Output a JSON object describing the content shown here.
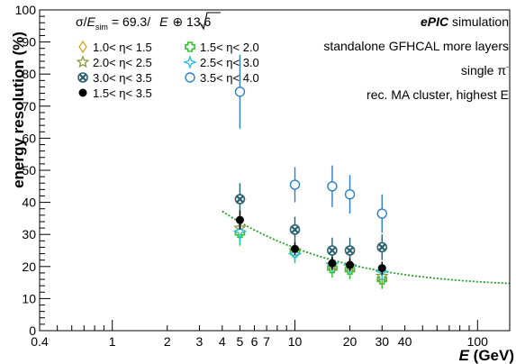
{
  "chart_data": {
    "type": "scatter",
    "xscale": "log",
    "xlim": [
      0.4,
      150
    ],
    "ylim": [
      0,
      100
    ],
    "xlabel_sym": "E",
    "xlabel_unit": " (GeV)",
    "ylabel": "energy resolution (%)",
    "x_ticks": [
      0.4,
      1,
      2,
      3,
      4,
      5,
      6,
      7,
      10,
      20,
      30,
      40,
      100
    ],
    "x_tick_labels": [
      "0.4",
      "1",
      "2",
      "3",
      "4",
      "5",
      "6",
      "7",
      "10",
      "20",
      "30",
      "40",
      "100"
    ],
    "y_ticks": [
      0,
      10,
      20,
      30,
      40,
      50,
      60,
      70,
      80,
      90,
      100
    ],
    "y_tick_labels": [
      "0",
      "10",
      "20",
      "30",
      "40",
      "50",
      "60",
      "70",
      "80",
      "90",
      "100"
    ],
    "grid": false,
    "fit": {
      "formula_lhs_sigma": "σ/",
      "formula_lhs_E": "E",
      "formula_lhs_sub": "sim",
      "formula_eq": "= 69.3/",
      "formula_sqrt_arg": "E",
      "formula_const": "⊕ 13.6",
      "stochastic": 69.3,
      "constant": 13.6,
      "x_range": [
        4,
        150
      ],
      "color": "#2aa02a"
    },
    "annotations": {
      "line1_bold": "ePIC",
      "line1_rest": " simulation",
      "line2": "standalone GFHCAL more layers",
      "line3": "single π",
      "line3_sup": "-",
      "line4": "rec. MA cluster, highest E"
    },
    "series": [
      {
        "name": "1.0< η< 1.5",
        "marker": "diamond",
        "color": "#d4a017",
        "points": []
      },
      {
        "name": "1.5< η< 2.0",
        "marker": "cross",
        "color": "#2dc52d",
        "points": [
          {
            "x": 5,
            "y": 30.5,
            "err": 4
          },
          {
            "x": 10,
            "y": 24.5,
            "err": 3
          },
          {
            "x": 16,
            "y": 19.5,
            "err": 3
          },
          {
            "x": 20,
            "y": 19,
            "err": 3
          },
          {
            "x": 30,
            "y": 16,
            "err": 3
          }
        ]
      },
      {
        "name": "2.0< η< 2.5",
        "marker": "star",
        "color": "#8a9a3a",
        "points": [
          {
            "x": 5,
            "y": 32,
            "err": 4
          },
          {
            "x": 10,
            "y": 25,
            "err": 3
          },
          {
            "x": 16,
            "y": 20.5,
            "err": 3
          },
          {
            "x": 20,
            "y": 20,
            "err": 3
          },
          {
            "x": 30,
            "y": 17,
            "err": 3
          }
        ]
      },
      {
        "name": "2.5< η< 3.0",
        "marker": "star4",
        "color": "#22c0d8",
        "points": [
          {
            "x": 5,
            "y": 31,
            "err": 4
          },
          {
            "x": 10,
            "y": 24,
            "err": 3
          },
          {
            "x": 16,
            "y": 21,
            "err": 3
          },
          {
            "x": 20,
            "y": 20.5,
            "err": 3
          },
          {
            "x": 30,
            "y": 18.5,
            "err": 3
          }
        ]
      },
      {
        "name": "3.0< η< 3.5",
        "marker": "xcircle",
        "color": "#2a6070",
        "points": [
          {
            "x": 5,
            "y": 41,
            "err": 5
          },
          {
            "x": 10,
            "y": 31.5,
            "err": 4
          },
          {
            "x": 16,
            "y": 25,
            "err": 4
          },
          {
            "x": 20,
            "y": 25,
            "err": 4
          },
          {
            "x": 30,
            "y": 26,
            "err": 4
          }
        ]
      },
      {
        "name": "3.5< η< 4.0",
        "marker": "circle_open",
        "color": "#2f7fc8",
        "points": [
          {
            "x": 5,
            "y": 74.5,
            "err": 11.5
          },
          {
            "x": 10,
            "y": 45.5,
            "err": 5.5
          },
          {
            "x": 16,
            "y": 45,
            "err": 6.5
          },
          {
            "x": 20,
            "y": 42.5,
            "err": 6
          },
          {
            "x": 30,
            "y": 36.5,
            "err": 6
          }
        ]
      },
      {
        "name": "1.5< η< 3.5",
        "marker": "circle_filled",
        "color": "#000000",
        "points": [
          {
            "x": 5,
            "y": 34.5,
            "err": 3
          },
          {
            "x": 10,
            "y": 25.5,
            "err": 2
          },
          {
            "x": 16,
            "y": 21,
            "err": 2
          },
          {
            "x": 20,
            "y": 20.5,
            "err": 2
          },
          {
            "x": 30,
            "y": 19.5,
            "err": 2
          }
        ]
      }
    ],
    "legend": [
      {
        "label": "1.0< η< 1.5",
        "series": 0
      },
      {
        "label": "1.5< η< 2.0",
        "series": 1
      },
      {
        "label": "2.0< η< 2.5",
        "series": 2
      },
      {
        "label": "2.5< η< 3.0",
        "series": 3
      },
      {
        "label": "3.0< η< 3.5",
        "series": 4
      },
      {
        "label": "3.5< η< 4.0",
        "series": 5
      },
      {
        "label": "1.5< η< 3.5",
        "series": 6
      }
    ]
  }
}
